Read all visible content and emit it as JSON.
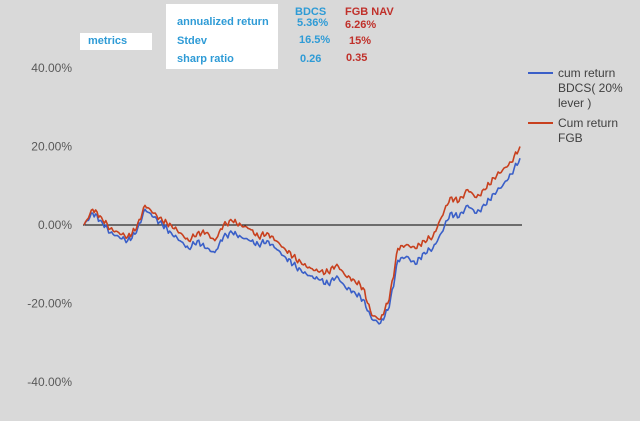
{
  "metrics_table": {
    "section_label": "metrics",
    "columns": [
      {
        "label": "BDCS",
        "color": "#2e9bd6"
      },
      {
        "label": "FGB NAV",
        "color": "#c0302a"
      }
    ],
    "rows": [
      {
        "name": "annualized return",
        "bdcs": "5.36%",
        "fgb": "6.26%"
      },
      {
        "name": "Stdev",
        "bdcs": "16.5%",
        "fgb": "15%"
      },
      {
        "name": "sharp ratio",
        "bdcs": "0.26",
        "fgb": "0.35"
      }
    ]
  },
  "chart_data": {
    "type": "line",
    "title": "",
    "xlabel": "",
    "ylabel": "",
    "ylim": [
      -0.4,
      0.4
    ],
    "y_ticks": [
      0.4,
      0.2,
      0.0,
      -0.2,
      -0.4
    ],
    "y_tick_labels": [
      "40.00%",
      "20.00%",
      "0.00%",
      "-20.00%",
      "-40.00%"
    ],
    "grid": false,
    "zero_line": true,
    "legend_position": "right",
    "x_index": [
      0,
      0.02,
      0.04,
      0.06,
      0.08,
      0.1,
      0.12,
      0.14,
      0.16,
      0.18,
      0.2,
      0.22,
      0.24,
      0.26,
      0.28,
      0.3,
      0.32,
      0.34,
      0.36,
      0.38,
      0.4,
      0.42,
      0.44,
      0.46,
      0.48,
      0.5,
      0.52,
      0.54,
      0.56,
      0.58,
      0.6,
      0.62,
      0.64,
      0.66,
      0.68,
      0.7,
      0.72,
      0.74,
      0.76,
      0.78,
      0.8,
      0.82,
      0.84,
      0.86,
      0.88,
      0.9,
      0.92,
      0.94,
      0.96,
      0.98,
      1.0
    ],
    "series": [
      {
        "name": "cum return BDCS( 20% lever )",
        "color": "#3a5fc8",
        "values": [
          0.0,
          0.03,
          0.01,
          -0.02,
          -0.03,
          -0.04,
          -0.02,
          0.04,
          0.02,
          0.0,
          -0.02,
          -0.04,
          -0.06,
          -0.04,
          -0.06,
          -0.07,
          -0.03,
          -0.02,
          -0.03,
          -0.04,
          -0.05,
          -0.04,
          -0.06,
          -0.08,
          -0.1,
          -0.12,
          -0.13,
          -0.14,
          -0.15,
          -0.13,
          -0.16,
          -0.17,
          -0.19,
          -0.24,
          -0.25,
          -0.21,
          -0.09,
          -0.08,
          -0.1,
          -0.07,
          -0.06,
          -0.02,
          0.03,
          0.02,
          0.05,
          0.03,
          0.05,
          0.08,
          0.1,
          0.13,
          0.17
        ]
      },
      {
        "name": "Cum return FGB",
        "color": "#c8401e",
        "values": [
          0.0,
          0.04,
          0.02,
          -0.01,
          -0.02,
          -0.03,
          -0.01,
          0.05,
          0.03,
          0.01,
          0.0,
          -0.02,
          -0.04,
          -0.02,
          -0.02,
          -0.04,
          0.0,
          0.01,
          0.0,
          -0.01,
          -0.03,
          -0.02,
          -0.04,
          -0.06,
          -0.08,
          -0.1,
          -0.11,
          -0.12,
          -0.12,
          -0.1,
          -0.13,
          -0.14,
          -0.16,
          -0.23,
          -0.24,
          -0.19,
          -0.06,
          -0.05,
          -0.06,
          -0.04,
          -0.03,
          0.02,
          0.07,
          0.06,
          0.09,
          0.07,
          0.09,
          0.12,
          0.14,
          0.16,
          0.2
        ]
      }
    ]
  }
}
